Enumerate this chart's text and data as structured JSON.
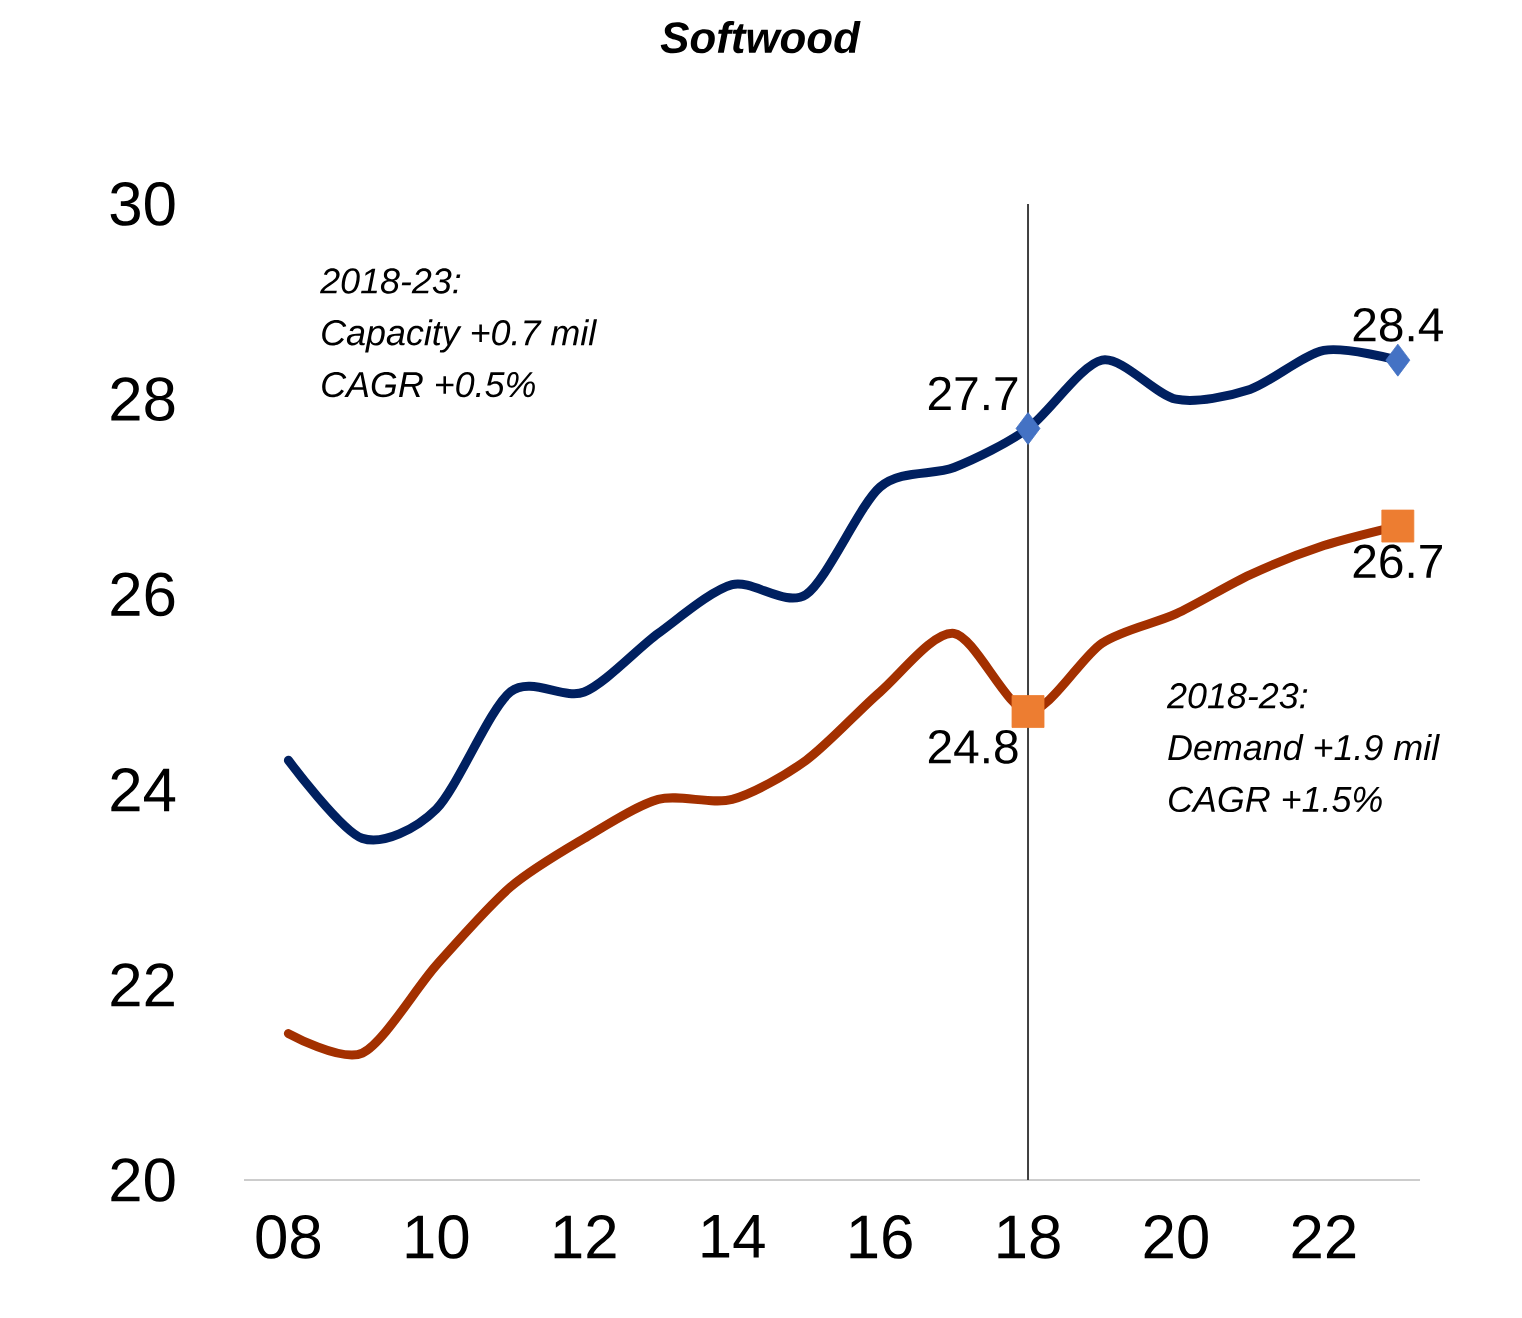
{
  "chart_data": {
    "type": "line",
    "title": "Softwood",
    "x": [
      2008,
      2009,
      2010,
      2011,
      2012,
      2013,
      2014,
      2015,
      2016,
      2017,
      2018,
      2019,
      2020,
      2021,
      2022,
      2023
    ],
    "series": [
      {
        "color": "#002060",
        "colors": [
          null,
          null,
          null,
          null,
          null,
          null,
          null,
          null,
          null,
          null,
          "#4472c4",
          null,
          null,
          null,
          null,
          "#4472c4"
        ],
        "values": [
          24.3,
          23.5,
          23.8,
          25.0,
          25.0,
          25.6,
          26.1,
          26.0,
          27.1,
          27.3,
          27.7,
          28.4,
          28.0,
          28.1,
          28.5,
          28.4
        ],
        "value_labels": [
          null,
          null,
          null,
          null,
          null,
          null,
          null,
          null,
          null,
          null,
          "27.7",
          null,
          null,
          null,
          null,
          "28.4"
        ]
      },
      {
        "color": "#a33000",
        "colors": [
          null,
          null,
          null,
          null,
          null,
          null,
          null,
          null,
          null,
          null,
          "#ed7d31",
          null,
          null,
          null,
          null,
          "#ed7d31"
        ],
        "values": [
          21.5,
          21.3,
          22.2,
          23.0,
          23.5,
          23.9,
          23.9,
          24.3,
          25.0,
          25.6,
          24.8,
          25.5,
          25.8,
          26.2,
          26.5,
          26.7
        ],
        "value_labels": [
          null,
          null,
          null,
          null,
          null,
          null,
          null,
          null,
          null,
          null,
          "24.8",
          null,
          null,
          null,
          null,
          "26.7"
        ]
      }
    ],
    "xlim": [
      2007.4,
      2023.3
    ],
    "ylim": [
      20,
      30
    ],
    "xticks": [
      {
        "value": 2008,
        "label": "08"
      },
      {
        "value": 2010,
        "label": "10"
      },
      {
        "value": 2012,
        "label": "12"
      },
      {
        "value": 2014,
        "label": "14"
      },
      {
        "value": 2016,
        "label": "16"
      },
      {
        "value": 2018,
        "label": "18"
      },
      {
        "value": 2020,
        "label": "20"
      },
      {
        "value": 2022,
        "label": "22"
      }
    ],
    "yticks": [
      20,
      22,
      24,
      26,
      28,
      30
    ],
    "ref_lines": [
      {
        "axis": "x",
        "value": 2018,
        "color": "#404040"
      }
    ],
    "annotations": [
      "2018-23:",
      "Capacity +0.7 mil",
      "CAGR +0.5%",
      "2018-23:",
      "Demand +1.9 mil",
      "CAGR +1.5%"
    ],
    "grid": false,
    "line_style": "solid"
  }
}
